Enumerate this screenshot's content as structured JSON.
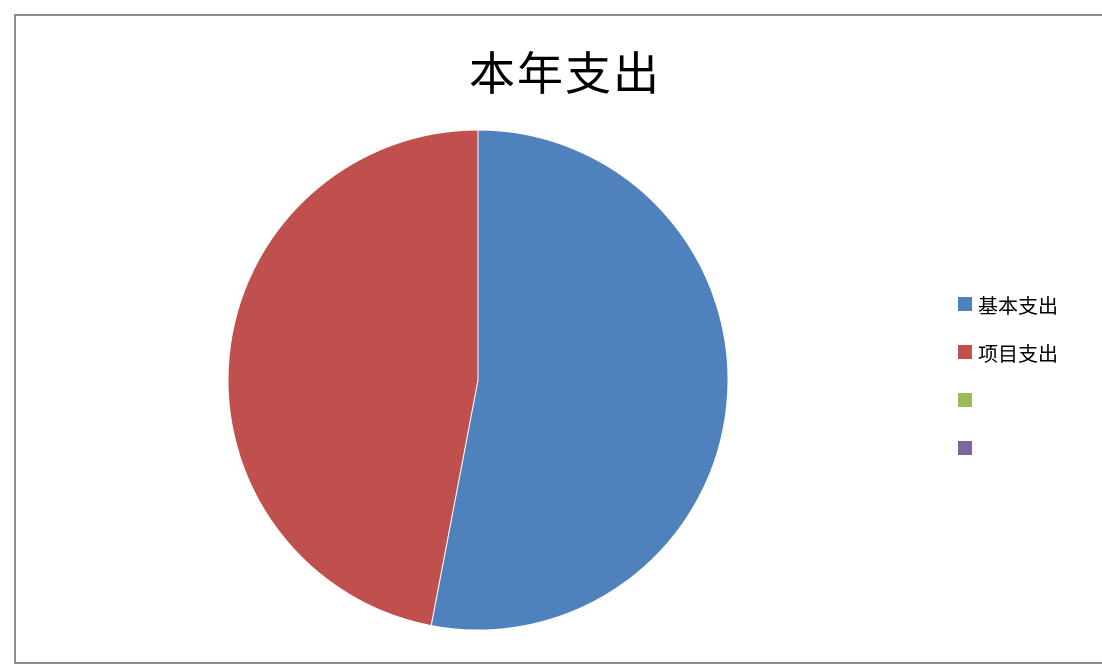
{
  "chart_data": {
    "type": "pie",
    "title": "本年支出",
    "categories": [
      "基本支出",
      "项目支出",
      "",
      ""
    ],
    "values": [
      53,
      47,
      0,
      0
    ],
    "colors": [
      "#4f81bd",
      "#c0504d",
      "#9bbb59",
      "#8064a2"
    ],
    "legend_position": "right"
  }
}
